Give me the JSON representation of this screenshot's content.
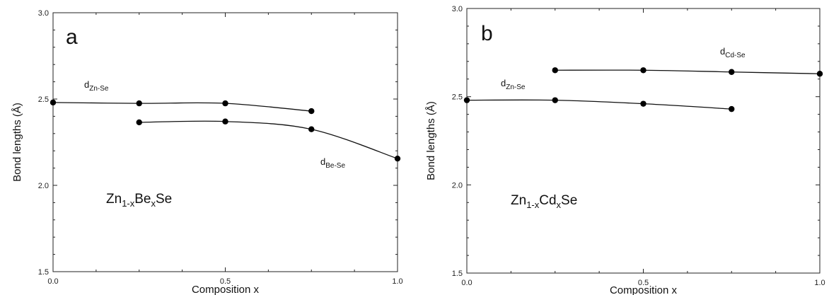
{
  "chart_data": [
    {
      "type": "line",
      "panel_label": "a",
      "xlabel": "Composition x",
      "ylabel": "Bond lengths (Å)",
      "xlim": [
        0.0,
        1.0
      ],
      "ylim": [
        1.5,
        3.0
      ],
      "x_ticks": [
        "0.0",
        "0.5",
        "1.0"
      ],
      "y_ticks": [
        "1.5",
        "2.0",
        "2.5",
        "3.0"
      ],
      "compound": {
        "base": "Zn",
        "sub1": "1-x",
        "mid": "Be",
        "sub2": "x",
        "tail": "Se"
      },
      "series": [
        {
          "label_main": "d",
          "label_sub": "Zn-Se",
          "x": [
            0.0,
            0.25,
            0.5,
            0.75
          ],
          "y": [
            2.48,
            2.475,
            2.475,
            2.43
          ]
        },
        {
          "label_main": "d",
          "label_sub": "Be-Se",
          "x": [
            0.25,
            0.5,
            0.75,
            1.0
          ],
          "y": [
            2.365,
            2.37,
            2.325,
            2.155
          ]
        }
      ]
    },
    {
      "type": "line",
      "panel_label": "b",
      "xlabel": "Composition x",
      "ylabel": "Bond lengths (Å)",
      "xlim": [
        0.0,
        1.0
      ],
      "ylim": [
        1.5,
        3.0
      ],
      "x_ticks": [
        "0.0",
        "0.5",
        "1.0"
      ],
      "y_ticks": [
        "1.5",
        "2.0",
        "2.5",
        "3.0"
      ],
      "compound": {
        "base": "Zn",
        "sub1": "1-x",
        "mid": "Cd",
        "sub2": "x",
        "tail": "Se"
      },
      "series": [
        {
          "label_main": "d",
          "label_sub": "Zn-Se",
          "x": [
            0.0,
            0.25,
            0.5,
            0.75
          ],
          "y": [
            2.48,
            2.48,
            2.46,
            2.43
          ]
        },
        {
          "label_main": "d",
          "label_sub": "Cd-Se",
          "x": [
            0.25,
            0.5,
            0.75,
            1.0
          ],
          "y": [
            2.65,
            2.65,
            2.64,
            2.63
          ]
        }
      ]
    }
  ]
}
